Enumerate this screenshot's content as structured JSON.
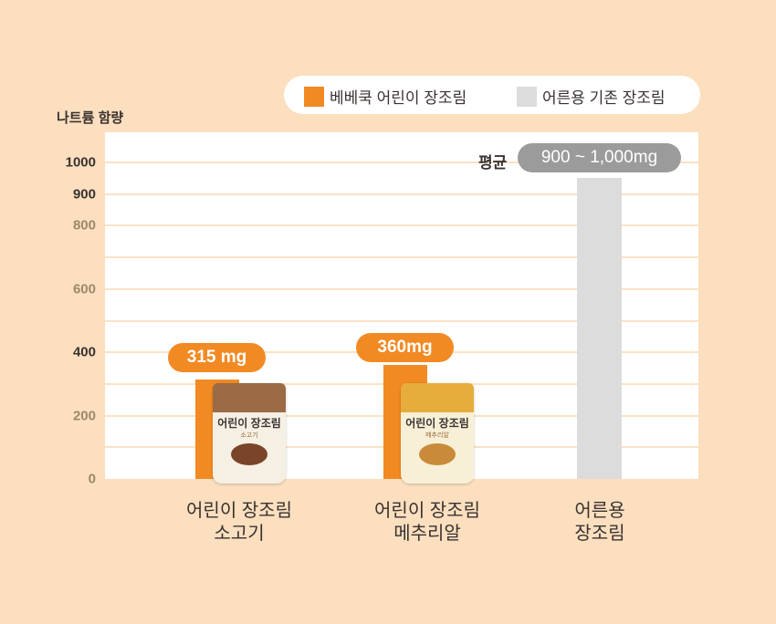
{
  "colors": {
    "baby": "#f28a24",
    "adult": "#dcdcdc",
    "pill_adult": "#9b9b9b",
    "tick_dark": "#3a3230",
    "tick_light": "#a2866a"
  },
  "chart_data": {
    "type": "bar",
    "ylabel": "나트륨 함량",
    "ylim": [
      0,
      1000
    ],
    "yticks": [
      {
        "v": 1000,
        "label": "1000",
        "dark": true
      },
      {
        "v": 900,
        "label": "900",
        "dark": true
      },
      {
        "v": 800,
        "label": "800",
        "dark": false
      },
      {
        "v": 600,
        "label": "600",
        "dark": false
      },
      {
        "v": 400,
        "label": "400",
        "dark": true
      },
      {
        "v": 200,
        "label": "200",
        "dark": false
      },
      {
        "v": 0,
        "label": "0",
        "dark": false
      }
    ],
    "gridlines": [
      100,
      200,
      300,
      400,
      500,
      600,
      700,
      800,
      900,
      1000
    ],
    "legend": [
      {
        "name": "베베쿡 어린이 장조림",
        "color": "#f28a24"
      },
      {
        "name": "어른용 기존 장조림",
        "color": "#dcdcdc"
      }
    ],
    "categories": [
      {
        "line1": "어린이 장조림",
        "line2": "소고기"
      },
      {
        "line1": "어린이 장조림",
        "line2": "메추리알"
      },
      {
        "line1": "어른용",
        "line2": "장조림"
      }
    ],
    "values": [
      315,
      360,
      950
    ],
    "series_index": [
      0,
      0,
      1
    ],
    "data_labels": [
      "315 mg",
      "360mg",
      "900 ~ 1,000mg"
    ],
    "avg_prefix": "평균"
  },
  "products": [
    {
      "brand": "어린이 장조림",
      "flavor": "소고기"
    },
    {
      "brand": "어린이 장조림",
      "flavor": "메추리알"
    }
  ]
}
